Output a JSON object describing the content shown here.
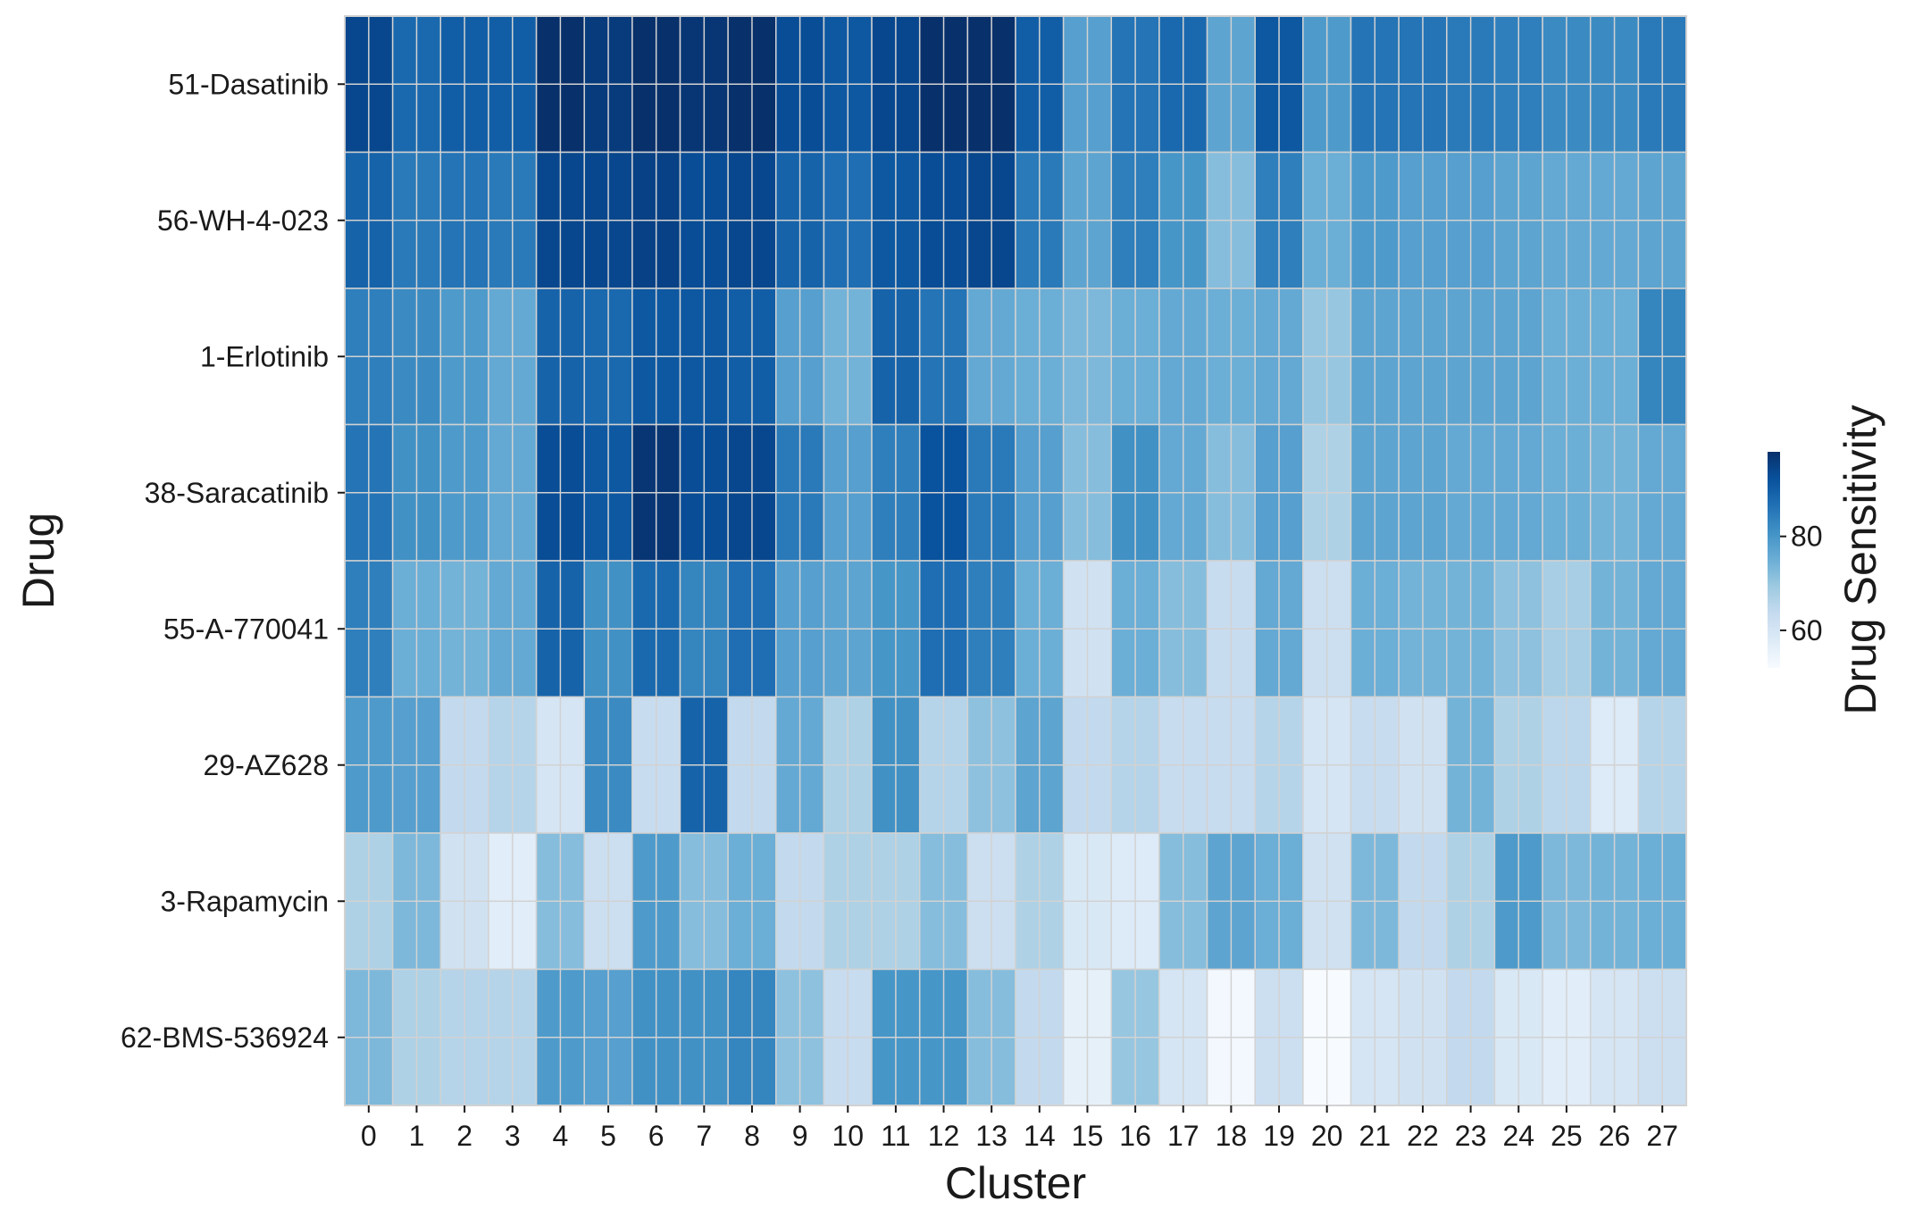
{
  "chart_data": {
    "type": "heatmap",
    "xlabel": "Cluster",
    "ylabel": "Drug",
    "x_categories": [
      "0",
      "1",
      "2",
      "3",
      "4",
      "5",
      "6",
      "7",
      "8",
      "9",
      "10",
      "11",
      "12",
      "13",
      "14",
      "15",
      "16",
      "17",
      "18",
      "19",
      "20",
      "21",
      "22",
      "23",
      "24",
      "25",
      "26",
      "27"
    ],
    "y_categories": [
      "51-Dasatinib",
      "56-WH-4-023",
      "1-Erlotinib",
      "38-Saracatinib",
      "55-A-770041",
      "29-AZ628",
      "3-Rapamycin",
      "62-BMS-536924"
    ],
    "values": [
      [
        94,
        88,
        90,
        90,
        98,
        96,
        98,
        97,
        98,
        93,
        91,
        94,
        98,
        98,
        90,
        78,
        86,
        88,
        77,
        91,
        79,
        86,
        86,
        85,
        84,
        82,
        82,
        85
      ],
      [
        89,
        85,
        86,
        85,
        94,
        94,
        95,
        93,
        94,
        89,
        87,
        91,
        93,
        94,
        85,
        77,
        84,
        80,
        72,
        84,
        75,
        79,
        78,
        78,
        77,
        76,
        76,
        77
      ],
      [
        84,
        82,
        79,
        76,
        89,
        88,
        91,
        91,
        90,
        78,
        74,
        89,
        86,
        76,
        75,
        73,
        75,
        76,
        75,
        76,
        70,
        77,
        77,
        77,
        77,
        75,
        75,
        83
      ],
      [
        86,
        81,
        79,
        76,
        93,
        91,
        97,
        93,
        94,
        85,
        78,
        84,
        92,
        85,
        78,
        72,
        81,
        76,
        72,
        78,
        67,
        77,
        77,
        76,
        76,
        75,
        74,
        76
      ],
      [
        84,
        75,
        74,
        76,
        89,
        81,
        88,
        83,
        87,
        78,
        77,
        80,
        87,
        84,
        75,
        61,
        75,
        72,
        63,
        76,
        62,
        75,
        74,
        74,
        71,
        68,
        74,
        76
      ],
      [
        79,
        78,
        64,
        66,
        60,
        82,
        63,
        89,
        64,
        76,
        67,
        81,
        66,
        71,
        77,
        64,
        66,
        63,
        63,
        66,
        60,
        63,
        61,
        74,
        67,
        65,
        58,
        66
      ],
      [
        67,
        73,
        61,
        57,
        72,
        62,
        79,
        72,
        75,
        64,
        67,
        67,
        72,
        62,
        67,
        59,
        58,
        72,
        77,
        75,
        61,
        73,
        64,
        67,
        79,
        73,
        74,
        75
      ],
      [
        73,
        67,
        66,
        66,
        79,
        78,
        81,
        81,
        83,
        71,
        63,
        80,
        80,
        72,
        64,
        56,
        70,
        60,
        53,
        62,
        52,
        60,
        61,
        64,
        59,
        57,
        60,
        62
      ]
    ],
    "colorbar": {
      "label": "Drug Sensitivity",
      "ticks": [
        60,
        80
      ],
      "range": [
        52,
        98
      ],
      "colormap": "Blues"
    },
    "colors": {
      "grid_line": "#d2d2d2",
      "cmap_low": "#f7fbff",
      "cmap_high": "#08306b"
    }
  }
}
